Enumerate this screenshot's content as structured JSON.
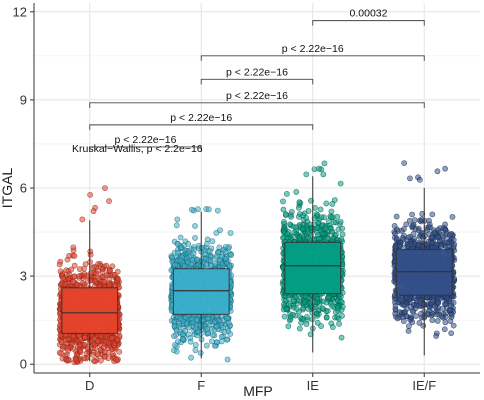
{
  "chart_data": {
    "type": "box",
    "xlabel": "MFP",
    "ylabel": "ITGAL",
    "ylim": [
      -0.3,
      12.3
    ],
    "yticks": [
      0,
      3,
      6,
      9,
      12
    ],
    "grid": true,
    "categories": [
      "D",
      "F",
      "IE",
      "IE/F"
    ],
    "colors": [
      "#e8432b",
      "#3ab0cc",
      "#03a085",
      "#33508a"
    ],
    "boxes": [
      {
        "category": "D",
        "q1": 1.05,
        "median": 1.75,
        "q3": 2.6,
        "whisker_low": 0.1,
        "whisker_high": 4.9,
        "points_max": 6.15,
        "points_min": 0.05
      },
      {
        "category": "F",
        "q1": 1.7,
        "median": 2.5,
        "q3": 3.25,
        "whisker_low": 0.2,
        "whisker_high": 5.2,
        "points_max": 5.3,
        "points_min": 0.1
      },
      {
        "category": "IE",
        "q1": 2.4,
        "median": 3.35,
        "q3": 4.15,
        "whisker_low": 0.4,
        "whisker_high": 6.4,
        "points_max": 6.95,
        "points_min": 0.3
      },
      {
        "category": "IE/F",
        "q1": 2.35,
        "median": 3.15,
        "q3": 3.9,
        "whisker_low": 0.3,
        "whisker_high": 6.0,
        "points_max": 7.15,
        "points_min": 0.2
      }
    ],
    "global_test": "Kruskal−Wallis, p < 2.2e−16",
    "comparisons": [
      {
        "from": "IE",
        "to": "IE/F",
        "y": 11.7,
        "label": "0.00032"
      },
      {
        "from": "F",
        "to": "IE/F",
        "y": 10.5,
        "label": "p < 2.22e−16"
      },
      {
        "from": "F",
        "to": "IE",
        "y": 9.7,
        "label": "p < 2.22e−16"
      },
      {
        "from": "D",
        "to": "IE/F",
        "y": 8.9,
        "label": "p < 2.22e−16"
      },
      {
        "from": "D",
        "to": "IE",
        "y": 8.15,
        "label": "p < 2.22e−16"
      },
      {
        "from": "D",
        "to": "F",
        "y": 7.4,
        "label": "p < 2.22e−16"
      }
    ]
  }
}
